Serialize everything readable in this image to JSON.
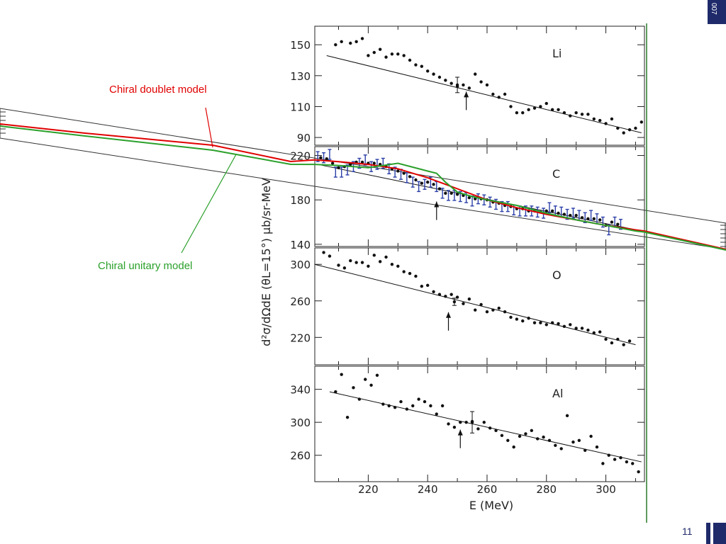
{
  "slide": {
    "corner_text": "007",
    "page_number": "11",
    "colors": {
      "accent_navy": "#1f2a6b",
      "doublet": "#e00000",
      "unitary": "#2aa02a",
      "data_blue": "#2b3fa8"
    }
  },
  "annotations": {
    "doublet": "Chiral doublet model",
    "unitary": "Chiral unitary model"
  },
  "chart_data": {
    "type": "scatter",
    "xlabel": "E  (MeV)",
    "ylabel": "d²σ/dΩdE  (θL=15°)  μb/sr-MeV",
    "xlim": [
      202,
      313
    ],
    "xticks": [
      220,
      240,
      260,
      280,
      300
    ],
    "panels": [
      {
        "label": "Li",
        "ylim": [
          85,
          162
        ],
        "yticks": [
          90,
          110,
          130,
          150
        ],
        "fit_line": [
          [
            206,
            143
          ],
          [
            312,
            93
          ]
        ],
        "error_bars": [
          {
            "x": 250,
            "y": 124,
            "lo": 119,
            "hi": 129
          }
        ],
        "arrow_x": 253,
        "points": [
          [
            209,
            150
          ],
          [
            211,
            152
          ],
          [
            214,
            151
          ],
          [
            216,
            152
          ],
          [
            218,
            154
          ],
          [
            220,
            143
          ],
          [
            222,
            145
          ],
          [
            224,
            147
          ],
          [
            226,
            142
          ],
          [
            228,
            144
          ],
          [
            230,
            144
          ],
          [
            232,
            143
          ],
          [
            234,
            140
          ],
          [
            236,
            137
          ],
          [
            238,
            136
          ],
          [
            240,
            133
          ],
          [
            242,
            131
          ],
          [
            244,
            129
          ],
          [
            246,
            127
          ],
          [
            248,
            125
          ],
          [
            250,
            123
          ],
          [
            252,
            124
          ],
          [
            254,
            122
          ],
          [
            256,
            131
          ],
          [
            258,
            126
          ],
          [
            260,
            124
          ],
          [
            262,
            118
          ],
          [
            264,
            116
          ],
          [
            266,
            118
          ],
          [
            268,
            110
          ],
          [
            270,
            106
          ],
          [
            272,
            106
          ],
          [
            274,
            108
          ],
          [
            276,
            109
          ],
          [
            278,
            110
          ],
          [
            280,
            112
          ],
          [
            282,
            108
          ],
          [
            284,
            108
          ],
          [
            286,
            106
          ],
          [
            288,
            104
          ],
          [
            290,
            106
          ],
          [
            292,
            105
          ],
          [
            294,
            105
          ],
          [
            296,
            102
          ],
          [
            298,
            101
          ],
          [
            300,
            99
          ],
          [
            302,
            102
          ],
          [
            304,
            96
          ],
          [
            306,
            93
          ],
          [
            308,
            95
          ],
          [
            310,
            96
          ],
          [
            312,
            100
          ]
        ]
      },
      {
        "label": "C",
        "ylim": [
          138,
          228
        ],
        "yticks": [
          140,
          180,
          220
        ],
        "fit_line": [
          [
            203,
            212
          ],
          [
            312,
            152
          ]
        ],
        "arrow_x": 243,
        "error_points": [
          [
            203,
            219
          ],
          [
            205,
            218
          ],
          [
            207,
            221
          ],
          [
            209,
            205
          ],
          [
            211,
            205
          ],
          [
            213,
            207
          ],
          [
            215,
            210
          ],
          [
            217,
            213
          ],
          [
            219,
            216
          ],
          [
            221,
            210
          ],
          [
            223,
            212
          ],
          [
            225,
            213
          ],
          [
            227,
            208
          ],
          [
            229,
            205
          ],
          [
            231,
            203
          ],
          [
            233,
            200
          ],
          [
            235,
            196
          ],
          [
            237,
            192
          ],
          [
            239,
            194
          ],
          [
            241,
            196
          ],
          [
            243,
            192
          ],
          [
            245,
            186
          ],
          [
            247,
            184
          ],
          [
            249,
            184
          ],
          [
            251,
            183
          ],
          [
            253,
            182
          ],
          [
            255,
            179
          ],
          [
            257,
            181
          ],
          [
            259,
            180
          ],
          [
            261,
            178
          ],
          [
            263,
            176
          ],
          [
            265,
            174
          ],
          [
            267,
            174
          ],
          [
            269,
            171
          ],
          [
            271,
            170
          ],
          [
            273,
            170
          ],
          [
            275,
            170
          ],
          [
            277,
            169
          ],
          [
            279,
            168
          ],
          [
            281,
            173
          ],
          [
            283,
            170
          ],
          [
            285,
            169
          ],
          [
            287,
            167
          ],
          [
            289,
            168
          ],
          [
            291,
            166
          ],
          [
            293,
            164
          ],
          [
            295,
            166
          ],
          [
            297,
            163
          ],
          [
            299,
            160
          ],
          [
            301,
            153
          ],
          [
            303,
            160
          ],
          [
            305,
            158
          ]
        ],
        "points": [
          [
            204,
            218
          ],
          [
            206,
            217
          ],
          [
            208,
            213
          ],
          [
            210,
            209
          ],
          [
            212,
            210
          ],
          [
            214,
            212
          ],
          [
            216,
            214
          ],
          [
            218,
            214
          ],
          [
            220,
            213
          ],
          [
            222,
            213
          ],
          [
            224,
            212
          ],
          [
            226,
            210
          ],
          [
            228,
            208
          ],
          [
            230,
            206
          ],
          [
            232,
            204
          ],
          [
            234,
            201
          ],
          [
            236,
            198
          ],
          [
            238,
            195
          ],
          [
            240,
            196
          ],
          [
            242,
            194
          ],
          [
            244,
            190
          ],
          [
            246,
            186
          ],
          [
            248,
            186
          ],
          [
            250,
            185
          ],
          [
            252,
            184
          ],
          [
            254,
            182
          ],
          [
            256,
            181
          ],
          [
            258,
            181
          ],
          [
            260,
            180
          ],
          [
            262,
            178
          ],
          [
            264,
            177
          ],
          [
            266,
            175
          ],
          [
            268,
            174
          ],
          [
            270,
            172
          ],
          [
            272,
            172
          ],
          [
            274,
            170
          ],
          [
            276,
            170
          ],
          [
            278,
            169
          ],
          [
            280,
            170
          ],
          [
            282,
            170
          ],
          [
            284,
            168
          ],
          [
            286,
            167
          ],
          [
            288,
            166
          ],
          [
            290,
            166
          ],
          [
            292,
            164
          ],
          [
            294,
            163
          ],
          [
            296,
            163
          ],
          [
            298,
            162
          ],
          [
            300,
            157
          ],
          [
            302,
            160
          ],
          [
            304,
            158
          ]
        ]
      },
      {
        "label": "O",
        "ylim": [
          190,
          318
        ],
        "yticks": [
          220,
          260,
          300
        ],
        "fit_line": [
          [
            202,
            300
          ],
          [
            310,
            212
          ]
        ],
        "error_bars": [
          {
            "x": 249,
            "y": 259,
            "lo": 255,
            "hi": 263
          }
        ],
        "arrow_x": 247,
        "points": [
          [
            205,
            313
          ],
          [
            207,
            309
          ],
          [
            210,
            299
          ],
          [
            212,
            296
          ],
          [
            214,
            304
          ],
          [
            216,
            302
          ],
          [
            218,
            302
          ],
          [
            220,
            298
          ],
          [
            222,
            310
          ],
          [
            224,
            303
          ],
          [
            226,
            308
          ],
          [
            228,
            300
          ],
          [
            230,
            298
          ],
          [
            232,
            292
          ],
          [
            234,
            290
          ],
          [
            236,
            287
          ],
          [
            238,
            276
          ],
          [
            240,
            277
          ],
          [
            242,
            270
          ],
          [
            244,
            267
          ],
          [
            246,
            265
          ],
          [
            248,
            267
          ],
          [
            250,
            264
          ],
          [
            252,
            257
          ],
          [
            254,
            262
          ],
          [
            256,
            250
          ],
          [
            258,
            256
          ],
          [
            260,
            248
          ],
          [
            262,
            250
          ],
          [
            264,
            252
          ],
          [
            266,
            248
          ],
          [
            268,
            242
          ],
          [
            270,
            240
          ],
          [
            272,
            238
          ],
          [
            274,
            241
          ],
          [
            276,
            236
          ],
          [
            278,
            236
          ],
          [
            280,
            234
          ],
          [
            282,
            236
          ],
          [
            284,
            235
          ],
          [
            286,
            232
          ],
          [
            288,
            234
          ],
          [
            290,
            230
          ],
          [
            292,
            230
          ],
          [
            294,
            228
          ],
          [
            296,
            225
          ],
          [
            298,
            226
          ],
          [
            300,
            218
          ],
          [
            302,
            214
          ],
          [
            304,
            218
          ],
          [
            306,
            212
          ],
          [
            308,
            216
          ]
        ]
      },
      {
        "label": "Al",
        "ylim": [
          228,
          368
        ],
        "yticks": [
          260,
          300,
          340
        ],
        "fit_line": [
          [
            207,
            337
          ],
          [
            312,
            252
          ]
        ],
        "error_bars": [
          {
            "x": 255,
            "y": 300,
            "lo": 287,
            "hi": 313
          }
        ],
        "arrow_x": 251,
        "points": [
          [
            209,
            337
          ],
          [
            211,
            358
          ],
          [
            213,
            306
          ],
          [
            215,
            342
          ],
          [
            217,
            328
          ],
          [
            219,
            352
          ],
          [
            221,
            345
          ],
          [
            223,
            357
          ],
          [
            225,
            322
          ],
          [
            227,
            320
          ],
          [
            229,
            318
          ],
          [
            231,
            325
          ],
          [
            233,
            316
          ],
          [
            235,
            320
          ],
          [
            237,
            328
          ],
          [
            239,
            325
          ],
          [
            241,
            320
          ],
          [
            243,
            310
          ],
          [
            245,
            320
          ],
          [
            247,
            298
          ],
          [
            249,
            294
          ],
          [
            251,
            300
          ],
          [
            253,
            300
          ],
          [
            255,
            301
          ],
          [
            257,
            292
          ],
          [
            259,
            300
          ],
          [
            261,
            293
          ],
          [
            263,
            290
          ],
          [
            265,
            284
          ],
          [
            267,
            278
          ],
          [
            269,
            270
          ],
          [
            271,
            283
          ],
          [
            273,
            286
          ],
          [
            275,
            290
          ],
          [
            277,
            280
          ],
          [
            279,
            282
          ],
          [
            281,
            278
          ],
          [
            283,
            272
          ],
          [
            285,
            268
          ],
          [
            287,
            308
          ],
          [
            289,
            276
          ],
          [
            291,
            278
          ],
          [
            293,
            266
          ],
          [
            295,
            283
          ],
          [
            297,
            270
          ],
          [
            299,
            250
          ],
          [
            301,
            260
          ],
          [
            303,
            255
          ],
          [
            305,
            257
          ],
          [
            307,
            252
          ],
          [
            309,
            250
          ],
          [
            311,
            240
          ]
        ]
      }
    ],
    "series": [
      {
        "name": "Chiral doublet model",
        "color": "#e00000",
        "x": [
          202,
          210,
          220,
          230,
          240,
          250,
          260,
          270,
          280,
          290,
          300,
          310,
          313
        ],
        "y": [
          216,
          214.5,
          212,
          208,
          200,
          190,
          180,
          173,
          167,
          162,
          157,
          153,
          152
        ]
      },
      {
        "name": "Chiral unitary model",
        "color": "#2aa02a",
        "x": [
          202,
          210,
          220,
          230,
          240,
          243,
          246,
          250,
          255,
          260,
          270,
          280,
          290,
          300,
          310,
          313
        ],
        "y": [
          212,
          211,
          209,
          213,
          206,
          204,
          196,
          187,
          183,
          180,
          175,
          168,
          162,
          157,
          152,
          151
        ]
      }
    ]
  }
}
